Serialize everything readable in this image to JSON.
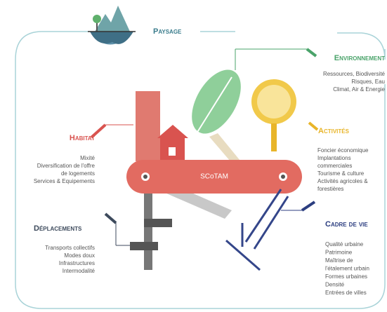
{
  "center_label": "SCoTAM",
  "sections": [
    {
      "title": "Paysage",
      "items": []
    },
    {
      "title": "Environnement",
      "items": [
        "Ressources, Biodiversité",
        "Risques, Eau",
        "Climat, Air & Energie"
      ]
    },
    {
      "title": "Activités",
      "items": [
        "Foncier économique",
        "Implantations",
        "commerciales",
        "Tourisme & culture",
        "Activités agricoles &",
        "forestières"
      ]
    },
    {
      "title": "Habitat",
      "items": [
        "Mixité",
        "Diversification de l'offre",
        "de logements",
        "Services & Equipements"
      ]
    },
    {
      "title": "Déplacements",
      "items": [
        "Transports collectifs",
        "Modes doux",
        "Infrastructures",
        "Intermodalité"
      ]
    },
    {
      "title": "Cadre de vie",
      "items": [
        "Qualité urbaine",
        "Patrimoine",
        "Maîtrise de",
        "l'étalement urbain",
        "Formes urbaines",
        "Densité",
        "Entrées de villes"
      ]
    }
  ]
}
